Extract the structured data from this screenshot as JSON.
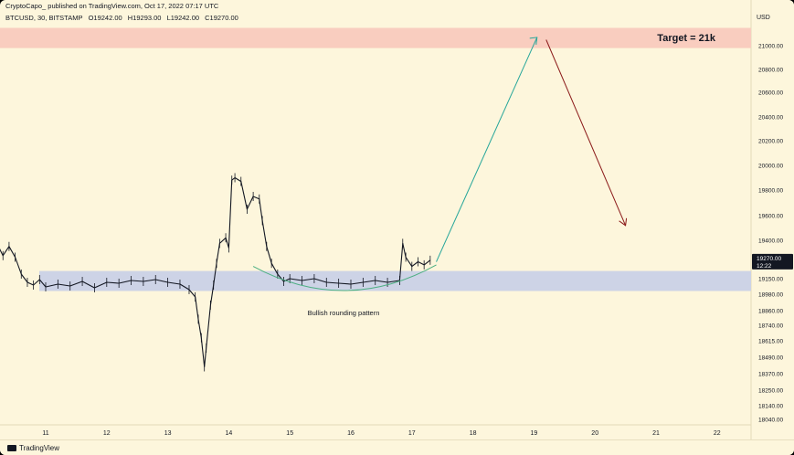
{
  "header": {
    "published_by": "CryptoCapo_ published on TradingView.com, Oct 17, 2022 07:17 UTC",
    "symbol": "BTCUSD, 30, BITSTAMP",
    "open": "O19242.00",
    "high": "H19293.00",
    "low": "L19242.00",
    "close": "C19270.00"
  },
  "footer": {
    "brand": "TradingView"
  },
  "chart_data": {
    "type": "line",
    "price_unit": "USD",
    "y_ticks": [
      "21000.00",
      "20800.00",
      "20600.00",
      "20400.00",
      "20200.00",
      "20000.00",
      "19800.00",
      "19600.00",
      "19400.00",
      "19150.00",
      "18980.00",
      "18860.00",
      "18740.00",
      "18615.00",
      "18490.00",
      "18370.00",
      "18250.00",
      "18140.00",
      "18040.00"
    ],
    "x_ticks": [
      "11",
      "12",
      "13",
      "14",
      "15",
      "16",
      "17",
      "18",
      "19",
      "20",
      "21",
      "22"
    ],
    "current_price": {
      "value": "19270.00",
      "countdown": "12:22"
    },
    "price_series": [
      [
        10.0,
        19350
      ],
      [
        10.1,
        19420
      ],
      [
        10.2,
        19380
      ],
      [
        10.3,
        19300
      ],
      [
        10.4,
        19360
      ],
      [
        10.5,
        19290
      ],
      [
        10.6,
        19180
      ],
      [
        10.7,
        19110
      ],
      [
        10.8,
        19080
      ],
      [
        10.9,
        19140
      ],
      [
        11.0,
        19060
      ],
      [
        11.2,
        19090
      ],
      [
        11.4,
        19070
      ],
      [
        11.6,
        19120
      ],
      [
        11.8,
        19050
      ],
      [
        12.0,
        19110
      ],
      [
        12.2,
        19100
      ],
      [
        12.4,
        19130
      ],
      [
        12.6,
        19120
      ],
      [
        12.8,
        19140
      ],
      [
        13.0,
        19110
      ],
      [
        13.2,
        19090
      ],
      [
        13.35,
        19030
      ],
      [
        13.45,
        18960
      ],
      [
        13.5,
        18790
      ],
      [
        13.55,
        18640
      ],
      [
        13.6,
        18420
      ],
      [
        13.63,
        18560
      ],
      [
        13.7,
        18900
      ],
      [
        13.75,
        19080
      ],
      [
        13.8,
        19250
      ],
      [
        13.85,
        19380
      ],
      [
        13.95,
        19420
      ],
      [
        14.0,
        19350
      ],
      [
        14.05,
        19880
      ],
      [
        14.1,
        19900
      ],
      [
        14.2,
        19870
      ],
      [
        14.3,
        19650
      ],
      [
        14.4,
        19750
      ],
      [
        14.5,
        19730
      ],
      [
        14.55,
        19560
      ],
      [
        14.62,
        19360
      ],
      [
        14.7,
        19250
      ],
      [
        14.8,
        19180
      ],
      [
        14.9,
        19120
      ],
      [
        15.0,
        19150
      ],
      [
        15.2,
        19130
      ],
      [
        15.4,
        19150
      ],
      [
        15.6,
        19110
      ],
      [
        15.8,
        19100
      ],
      [
        16.0,
        19090
      ],
      [
        16.2,
        19110
      ],
      [
        16.4,
        19130
      ],
      [
        16.6,
        19110
      ],
      [
        16.8,
        19130
      ],
      [
        16.85,
        19380
      ],
      [
        16.9,
        19290
      ],
      [
        17.0,
        19230
      ],
      [
        17.1,
        19260
      ],
      [
        17.2,
        19240
      ],
      [
        17.3,
        19270
      ]
    ],
    "support_zone": {
      "low": 19015,
      "high": 19200
    },
    "target_zone": {
      "low": 20980,
      "high": 21150
    },
    "projection_up": [
      [
        17.4,
        19260
      ],
      [
        19.05,
        21070
      ]
    ],
    "projection_down": [
      [
        19.2,
        21050
      ],
      [
        20.5,
        19520
      ]
    ],
    "rounding_arc": {
      "from": [
        14.4,
        19230
      ],
      "to": [
        17.4,
        19240
      ],
      "bottom": 19020
    },
    "annotations": {
      "target": "Target = 21k",
      "pattern": "Bullish rounding pattern"
    },
    "colors": {
      "bullish": "#26a69a",
      "bearish": "#8b1a1a",
      "candles": "#131722",
      "support": "#cdd3e6",
      "target_zone": "#f9cdbf",
      "arc": "#4caf82"
    }
  }
}
